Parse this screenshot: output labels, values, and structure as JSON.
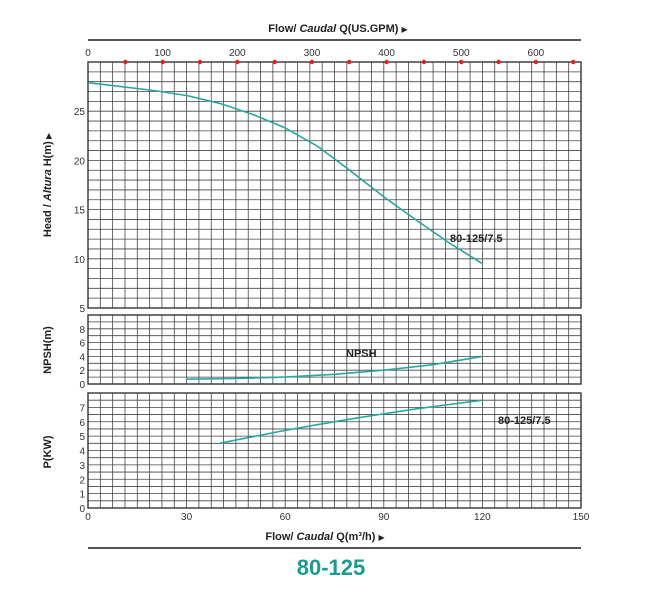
{
  "chart_data": {
    "type": "line",
    "model": "80-125",
    "top_axis": {
      "label_prefix": "Flow/ ",
      "label_italic": "Caudal",
      "label_suffix": " Q(US.GPM)",
      "ticks": [
        "0",
        "100",
        "200",
        "300",
        "400",
        "500",
        "600"
      ],
      "tick_values": [
        0,
        100,
        200,
        300,
        400,
        500,
        600
      ]
    },
    "bottom_axis": {
      "label_prefix": "Flow/ ",
      "label_italic": "Caudal",
      "label_suffix": " Q(m³/h)",
      "xlim": [
        0,
        150
      ],
      "ticks": [
        "0",
        "30",
        "60",
        "90",
        "120",
        "150"
      ],
      "tick_values": [
        0,
        30,
        60,
        90,
        120,
        150
      ]
    },
    "panels": [
      {
        "id": "head",
        "ylabel_prefix": "Head / ",
        "ylabel_italic": "Altura",
        "ylabel_suffix": " H(m)",
        "ylim": [
          5,
          30
        ],
        "ticks": [
          "5",
          "10",
          "15",
          "20",
          "25"
        ],
        "tick_values": [
          5,
          10,
          15,
          20,
          25
        ],
        "series": [
          {
            "name": "80-125/7.5",
            "x": [
              0,
              10,
              20,
              30,
              40,
              50,
              60,
              70,
              80,
              90,
              100,
              110,
              120
            ],
            "y": [
              27.9,
              27.5,
              27.1,
              26.6,
              25.8,
              24.7,
              23.3,
              21.4,
              18.9,
              16.3,
              13.9,
              11.6,
              9.5
            ]
          }
        ]
      },
      {
        "id": "npsh",
        "ylabel": "NPSH(m)",
        "ylim": [
          0,
          10
        ],
        "ticks": [
          "0",
          "2",
          "4",
          "6",
          "8"
        ],
        "tick_values": [
          0,
          2,
          4,
          6,
          8
        ],
        "series": [
          {
            "name": "NPSH",
            "x": [
              30,
              45,
              60,
              75,
              90,
              105,
              120
            ],
            "y": [
              0.7,
              0.8,
              1.0,
              1.4,
              2.0,
              2.8,
              4.0
            ]
          }
        ]
      },
      {
        "id": "power",
        "ylabel": "P(KW)",
        "ylim": [
          0,
          8
        ],
        "ticks": [
          "0",
          "1",
          "2",
          "3",
          "4",
          "5",
          "6",
          "7"
        ],
        "tick_values": [
          0,
          1,
          2,
          3,
          4,
          5,
          6,
          7
        ],
        "series": [
          {
            "name": "80-125/7.5",
            "x": [
              40,
              50,
              60,
              70,
              80,
              90,
              100,
              110,
              120
            ],
            "y": [
              4.5,
              4.95,
              5.4,
              5.8,
              6.2,
              6.55,
              6.9,
              7.2,
              7.5
            ]
          }
        ]
      }
    ],
    "grid": true,
    "colors": {
      "curve": "#2aa6a0",
      "grid": "#444444",
      "marker": "#e02020",
      "title": "#1a9a93"
    }
  }
}
